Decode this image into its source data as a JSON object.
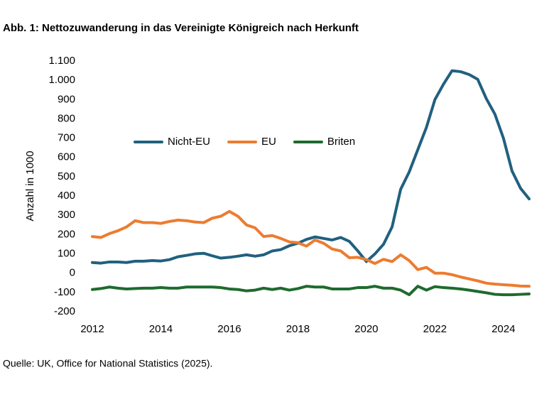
{
  "chart_data": {
    "type": "line",
    "title": "Abb. 1: Nettozuwanderung in das Vereinigte Königreich nach Herkunft",
    "y_label": "Anzahl in 1000",
    "source": "Quelle: UK, Office for National Statistics (2025).",
    "x": [
      2012,
      2012.25,
      2012.5,
      2012.75,
      2013,
      2013.25,
      2013.5,
      2013.75,
      2014,
      2014.25,
      2014.5,
      2014.75,
      2015,
      2015.25,
      2015.5,
      2015.75,
      2016,
      2016.25,
      2016.5,
      2016.75,
      2017,
      2017.25,
      2017.5,
      2017.75,
      2018,
      2018.25,
      2018.5,
      2018.75,
      2019,
      2019.25,
      2019.5,
      2019.75,
      2020,
      2020.25,
      2020.5,
      2020.75,
      2021,
      2021.25,
      2021.5,
      2021.75,
      2022,
      2022.25,
      2022.5,
      2022.75,
      2023,
      2023.25,
      2023.5,
      2023.75,
      2024,
      2024.25,
      2024.5,
      2024.75
    ],
    "xlim": [
      2012,
      2025
    ],
    "xticks": [
      2012,
      2014,
      2016,
      2018,
      2020,
      2022,
      2024
    ],
    "ylim": [
      -200,
      1100
    ],
    "yticks": [
      -200,
      -100,
      0,
      100,
      200,
      300,
      400,
      500,
      600,
      700,
      800,
      900,
      {
        "value": 1000,
        "label": "1.000"
      },
      {
        "value": 1100,
        "label": "1.100"
      }
    ],
    "grid": false,
    "legend": "top",
    "series": [
      {
        "name": "Nicht-EU",
        "color": "#21607f",
        "values": [
          55,
          52,
          58,
          58,
          55,
          62,
          62,
          65,
          63,
          70,
          85,
          92,
          100,
          103,
          90,
          78,
          82,
          88,
          95,
          88,
          95,
          115,
          122,
          142,
          155,
          175,
          188,
          180,
          172,
          185,
          165,
          115,
          60,
          100,
          150,
          240,
          435,
          525,
          640,
          755,
          900,
          980,
          1050,
          1045,
          1030,
          1005,
          905,
          825,
          700,
          530,
          440,
          385
        ]
      },
      {
        "name": "EU",
        "color": "#ec7c30",
        "values": [
          190,
          185,
          205,
          220,
          240,
          272,
          262,
          262,
          258,
          268,
          275,
          272,
          265,
          262,
          285,
          295,
          320,
          295,
          250,
          235,
          190,
          195,
          180,
          162,
          158,
          140,
          172,
          155,
          125,
          115,
          80,
          82,
          70,
          50,
          72,
          60,
          95,
          65,
          18,
          30,
          0,
          0,
          -8,
          -20,
          -30,
          -40,
          -52,
          -57,
          -60,
          -63,
          -67,
          -68
        ]
      },
      {
        "name": "Briten",
        "color": "#1e6b2e",
        "values": [
          -85,
          -80,
          -72,
          -78,
          -82,
          -80,
          -78,
          -78,
          -75,
          -78,
          -78,
          -72,
          -72,
          -72,
          -72,
          -75,
          -82,
          -85,
          -92,
          -88,
          -78,
          -85,
          -78,
          -88,
          -80,
          -68,
          -72,
          -72,
          -82,
          -82,
          -82,
          -75,
          -75,
          -68,
          -78,
          -78,
          -88,
          -112,
          -68,
          -88,
          -70,
          -75,
          -78,
          -82,
          -88,
          -95,
          -102,
          -110,
          -112,
          -112,
          -110,
          -108
        ]
      }
    ]
  }
}
